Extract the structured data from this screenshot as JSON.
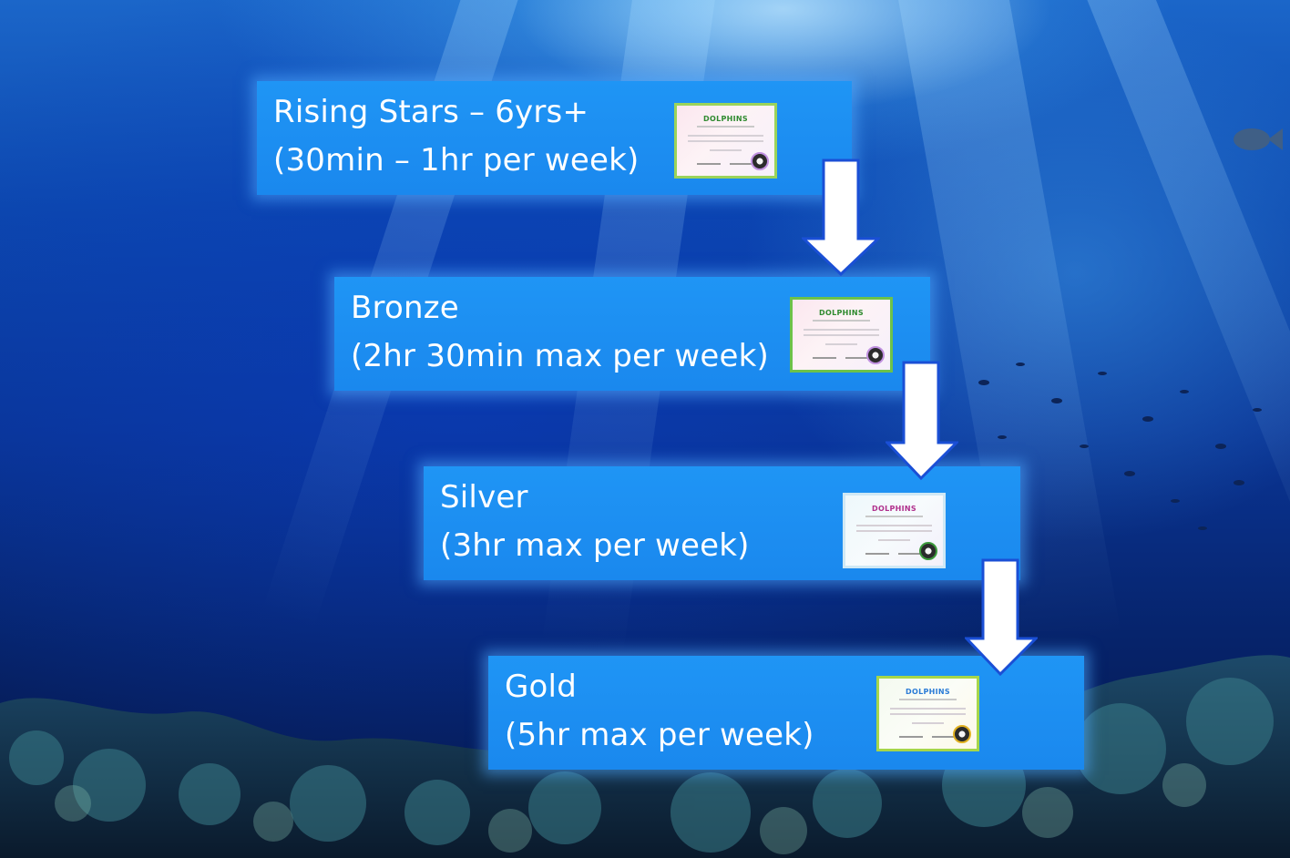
{
  "levels": [
    {
      "line1": "Rising Stars – 6yrs+",
      "line2": "(30min – 1hr per week)",
      "certificate": {
        "logo": "DOLPHINS",
        "logo_color": "#2f8a2f",
        "border_color": "#9bd35a",
        "seal_ring": "#c090e0"
      }
    },
    {
      "line1": "Bronze",
      "line2": "(2hr 30min max per week)",
      "certificate": {
        "logo": "DOLPHINS",
        "logo_color": "#2f8a2f",
        "border_color": "#6cc24a",
        "seal_ring": "#c090e0"
      }
    },
    {
      "line1": "Silver",
      "line2": "(3hr max per week)",
      "certificate": {
        "logo": "DOLPHINS",
        "logo_color": "#b0308c",
        "border_color": "#cfe8f5",
        "seal_ring": "#3c9a3c"
      }
    },
    {
      "line1": "Gold",
      "line2": "(5hr max per week)",
      "certificate": {
        "logo": "DOLPHINS",
        "logo_color": "#2a7bd6",
        "border_color": "#a6d64a",
        "seal_ring": "#e0b020"
      }
    }
  ],
  "colors": {
    "box_fill": "#1a8cf0",
    "box_glow": "#50aaff",
    "arrow_fill": "#ffffff",
    "arrow_stroke": "#1a4fd6"
  },
  "icons": [
    "certificate-icon",
    "arrow-down-icon"
  ]
}
